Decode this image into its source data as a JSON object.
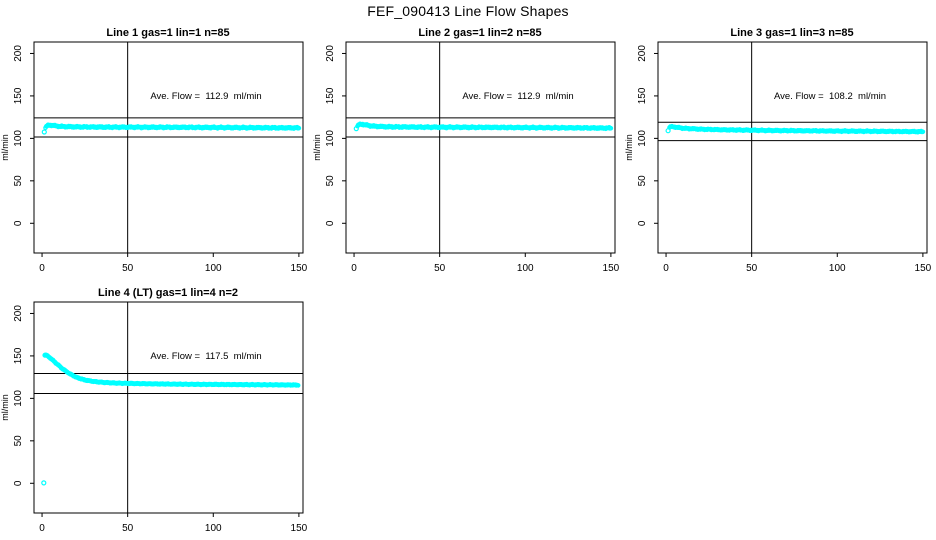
{
  "page": {
    "title": "FEF_090413  Line Flow Shapes",
    "background": "#ffffff"
  },
  "colors": {
    "data_point": "#00FFFF",
    "axis": "#000000",
    "text": "#000000"
  },
  "chart_data": [
    {
      "type": "scatter",
      "title": "Line 1 gas=1 lin=1 n=85",
      "ave_text": "Ave. Flow =  112.9  ml/min",
      "ave_flow_ml_min": 112.9,
      "n": 85,
      "ylabel": "ml/min",
      "xticks": [
        0,
        50,
        100,
        150
      ],
      "yticks": [
        0,
        50,
        100,
        150,
        200
      ],
      "xlim": [
        -4.7,
        152.4
      ],
      "ylim": [
        -35,
        213.5
      ],
      "vline_x": 50,
      "hlines": [
        101.6,
        124.2
      ],
      "series_keypoints": [
        [
          2,
          112.5
        ],
        [
          3,
          114.8
        ],
        [
          4,
          115.6
        ],
        [
          6,
          115.4
        ],
        [
          8,
          114.6
        ],
        [
          12,
          113.9
        ],
        [
          20,
          113.5
        ],
        [
          40,
          113.2
        ],
        [
          80,
          113.0
        ],
        [
          120,
          112.6
        ],
        [
          150,
          112.3
        ]
      ],
      "isolated_points": [
        [
          1.3,
          107.5
        ]
      ],
      "points_x_range": [
        2,
        150
      ],
      "point_step": 0.5,
      "spread": 1.0,
      "ave_label_at": {
        "x": 96,
        "y": 150
      },
      "grid": false,
      "legend": null
    },
    {
      "type": "scatter",
      "title": "Line 2 gas=1 lin=2 n=85",
      "ave_text": "Ave. Flow =  112.9  ml/min",
      "ave_flow_ml_min": 112.9,
      "n": 85,
      "ylabel": "ml/min",
      "xticks": [
        0,
        50,
        100,
        150
      ],
      "yticks": [
        0,
        50,
        100,
        150,
        200
      ],
      "xlim": [
        -4.7,
        152.4
      ],
      "ylim": [
        -35,
        213.5
      ],
      "vline_x": 50,
      "hlines": [
        101.6,
        124.2
      ],
      "series_keypoints": [
        [
          2,
          114.5
        ],
        [
          3,
          116.2
        ],
        [
          5,
          116.6
        ],
        [
          8,
          115.3
        ],
        [
          12,
          114.2
        ],
        [
          20,
          113.6
        ],
        [
          40,
          113.2
        ],
        [
          80,
          112.9
        ],
        [
          120,
          112.5
        ],
        [
          150,
          112.1
        ]
      ],
      "isolated_points": [
        [
          1.3,
          111.5
        ]
      ],
      "points_x_range": [
        2,
        150
      ],
      "point_step": 0.5,
      "spread": 1.0,
      "ave_label_at": {
        "x": 96,
        "y": 150
      },
      "grid": false,
      "legend": null
    },
    {
      "type": "scatter",
      "title": "Line 3 gas=1 lin=3 n=85",
      "ave_text": "Ave. Flow =  108.2  ml/min",
      "ave_flow_ml_min": 108.2,
      "n": 85,
      "ylabel": "ml/min",
      "xticks": [
        0,
        50,
        100,
        150
      ],
      "yticks": [
        0,
        50,
        100,
        150,
        200
      ],
      "xlim": [
        -4.7,
        152.4
      ],
      "ylim": [
        -35,
        213.5
      ],
      "vline_x": 50,
      "hlines": [
        97.4,
        119.0
      ],
      "series_keypoints": [
        [
          2,
          112.8
        ],
        [
          3,
          113.8
        ],
        [
          5,
          113.4
        ],
        [
          10,
          111.9
        ],
        [
          20,
          110.8
        ],
        [
          35,
          110.0
        ],
        [
          60,
          109.3
        ],
        [
          100,
          108.6
        ],
        [
          150,
          107.9
        ]
      ],
      "isolated_points": [
        [
          1.2,
          109.0
        ]
      ],
      "points_x_range": [
        2,
        150
      ],
      "point_step": 0.5,
      "spread": 0.8,
      "ave_label_at": {
        "x": 96,
        "y": 150
      },
      "grid": false,
      "legend": null
    },
    {
      "type": "scatter",
      "title": "Line 4 (LT) gas=1 lin=4 n=2",
      "ave_text": "Ave. Flow =  117.5  ml/min",
      "ave_flow_ml_min": 117.5,
      "n": 2,
      "ylabel": "ml/min",
      "xticks": [
        0,
        50,
        100,
        150
      ],
      "yticks": [
        0,
        50,
        100,
        150,
        200
      ],
      "xlim": [
        -4.7,
        152.4
      ],
      "ylim": [
        -35,
        213.5
      ],
      "vline_x": 50,
      "hlines": [
        105.75,
        129.25
      ],
      "series_keypoints": [
        [
          2,
          151.2
        ],
        [
          3,
          150.3
        ],
        [
          5,
          147.2
        ],
        [
          8,
          141.8
        ],
        [
          12,
          134.8
        ],
        [
          16,
          129.2
        ],
        [
          20,
          124.8
        ],
        [
          25,
          121.6
        ],
        [
          30,
          119.9
        ],
        [
          36,
          118.7
        ],
        [
          44,
          117.9
        ],
        [
          55,
          117.4
        ],
        [
          70,
          116.9
        ],
        [
          90,
          116.5
        ],
        [
          115,
          116.2
        ],
        [
          150,
          115.7
        ]
      ],
      "isolated_points": [
        [
          1,
          0.5
        ],
        [
          1.7,
          150.8
        ]
      ],
      "points_x_range": [
        2,
        150
      ],
      "point_step": 0.4,
      "spread": 0.6,
      "ave_label_at": {
        "x": 96,
        "y": 150
      },
      "grid": false,
      "legend": null
    }
  ]
}
